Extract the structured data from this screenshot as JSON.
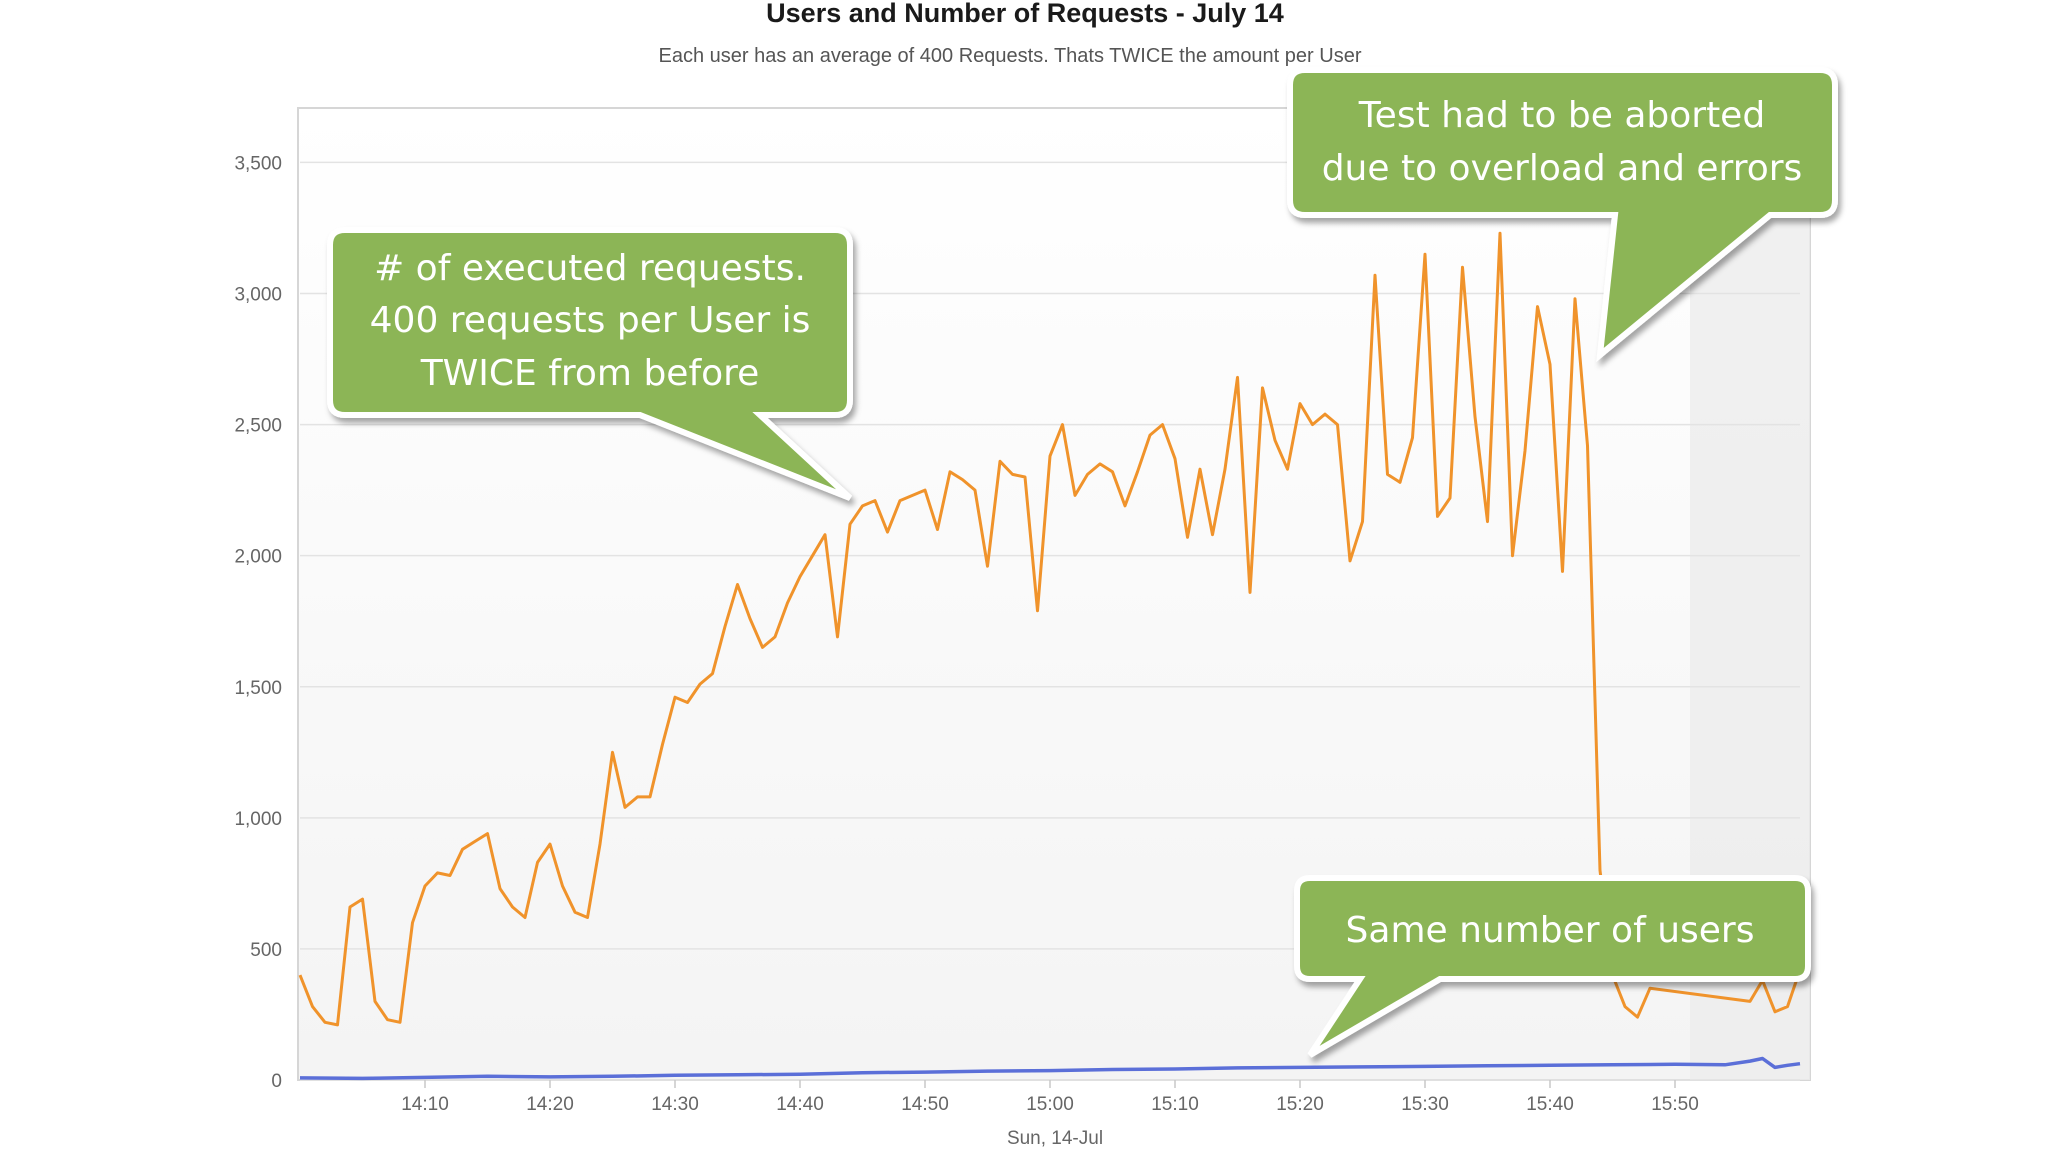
{
  "chart_data": {
    "type": "line",
    "title": "Users and Number of Requests - July 14",
    "subtitle": "Each user has an average of 400 Requests. Thats TWICE the amount per User",
    "xlabel": "Sun, 14-Jul",
    "ylabel": "",
    "x_tick_labels": [
      "14:10",
      "14:20",
      "14:30",
      "14:40",
      "14:50",
      "15:00",
      "15:10",
      "15:20",
      "15:30",
      "15:40",
      "15:50"
    ],
    "x_tick_minutes": [
      10,
      20,
      30,
      40,
      50,
      60,
      70,
      80,
      90,
      100,
      110
    ],
    "x_range_minutes": [
      0,
      120
    ],
    "y_tick_labels": [
      "0",
      "500",
      "1,000",
      "1,500",
      "2,000",
      "2,500",
      "3,000",
      "3,500"
    ],
    "y_tick_values": [
      0,
      500,
      1000,
      1500,
      2000,
      2500,
      3000,
      3500
    ],
    "ylim": [
      0,
      3700
    ],
    "grid": true,
    "series": [
      {
        "name": "",
        "color": "#f0932b",
        "points": [
          [
            0,
            400
          ],
          [
            1,
            280
          ],
          [
            2,
            220
          ],
          [
            3,
            210
          ],
          [
            4,
            660
          ],
          [
            5,
            690
          ],
          [
            6,
            300
          ],
          [
            7,
            230
          ],
          [
            8,
            220
          ],
          [
            9,
            600
          ],
          [
            10,
            740
          ],
          [
            11,
            790
          ],
          [
            12,
            780
          ],
          [
            13,
            880
          ],
          [
            14,
            910
          ],
          [
            15,
            940
          ],
          [
            16,
            730
          ],
          [
            17,
            660
          ],
          [
            18,
            620
          ],
          [
            19,
            830
          ],
          [
            20,
            900
          ],
          [
            21,
            740
          ],
          [
            22,
            640
          ],
          [
            23,
            620
          ],
          [
            24,
            900
          ],
          [
            25,
            1250
          ],
          [
            26,
            1040
          ],
          [
            27,
            1080
          ],
          [
            28,
            1080
          ],
          [
            29,
            1280
          ],
          [
            30,
            1460
          ],
          [
            31,
            1440
          ],
          [
            32,
            1510
          ],
          [
            33,
            1550
          ],
          [
            34,
            1730
          ],
          [
            35,
            1890
          ],
          [
            36,
            1760
          ],
          [
            37,
            1650
          ],
          [
            38,
            1690
          ],
          [
            39,
            1820
          ],
          [
            40,
            1920
          ],
          [
            41,
            2000
          ],
          [
            42,
            2080
          ],
          [
            43,
            1690
          ],
          [
            44,
            2120
          ],
          [
            45,
            2190
          ],
          [
            46,
            2210
          ],
          [
            47,
            2090
          ],
          [
            48,
            2210
          ],
          [
            49,
            2230
          ],
          [
            50,
            2250
          ],
          [
            51,
            2100
          ],
          [
            52,
            2320
          ],
          [
            53,
            2290
          ],
          [
            54,
            2250
          ],
          [
            55,
            1960
          ],
          [
            56,
            2360
          ],
          [
            57,
            2310
          ],
          [
            58,
            2300
          ],
          [
            59,
            1790
          ],
          [
            60,
            2380
          ],
          [
            61,
            2500
          ],
          [
            62,
            2230
          ],
          [
            63,
            2310
          ],
          [
            64,
            2350
          ],
          [
            65,
            2320
          ],
          [
            66,
            2190
          ],
          [
            67,
            2320
          ],
          [
            68,
            2460
          ],
          [
            69,
            2500
          ],
          [
            70,
            2370
          ],
          [
            71,
            2070
          ],
          [
            72,
            2330
          ],
          [
            73,
            2080
          ],
          [
            74,
            2330
          ],
          [
            75,
            2680
          ],
          [
            76,
            1860
          ],
          [
            77,
            2640
          ],
          [
            78,
            2440
          ],
          [
            79,
            2330
          ],
          [
            80,
            2580
          ],
          [
            81,
            2500
          ],
          [
            82,
            2540
          ],
          [
            83,
            2500
          ],
          [
            84,
            1980
          ],
          [
            85,
            2130
          ],
          [
            86,
            3070
          ],
          [
            87,
            2310
          ],
          [
            88,
            2280
          ],
          [
            89,
            2450
          ],
          [
            90,
            3150
          ],
          [
            91,
            2150
          ],
          [
            92,
            2220
          ],
          [
            93,
            3100
          ],
          [
            94,
            2530
          ],
          [
            95,
            2130
          ],
          [
            96,
            3230
          ],
          [
            97,
            2000
          ],
          [
            98,
            2400
          ],
          [
            99,
            2950
          ],
          [
            100,
            2730
          ],
          [
            101,
            1940
          ],
          [
            102,
            2980
          ],
          [
            103,
            2420
          ],
          [
            104,
            800
          ],
          [
            105,
            400
          ],
          [
            106,
            280
          ],
          [
            107,
            240
          ],
          [
            108,
            350
          ],
          [
            116,
            300
          ],
          [
            117,
            380
          ],
          [
            118,
            260
          ],
          [
            119,
            280
          ],
          [
            120,
            420
          ]
        ]
      },
      {
        "name": "",
        "color": "#5b6fd8",
        "points": [
          [
            0,
            8
          ],
          [
            5,
            6
          ],
          [
            10,
            10
          ],
          [
            15,
            14
          ],
          [
            20,
            12
          ],
          [
            25,
            14
          ],
          [
            30,
            18
          ],
          [
            35,
            20
          ],
          [
            40,
            22
          ],
          [
            45,
            28
          ],
          [
            50,
            30
          ],
          [
            55,
            34
          ],
          [
            60,
            36
          ],
          [
            65,
            40
          ],
          [
            70,
            42
          ],
          [
            75,
            46
          ],
          [
            80,
            48
          ],
          [
            85,
            50
          ],
          [
            90,
            52
          ],
          [
            95,
            54
          ],
          [
            100,
            56
          ],
          [
            105,
            58
          ],
          [
            110,
            60
          ],
          [
            114,
            58
          ],
          [
            116,
            72
          ],
          [
            117,
            82
          ],
          [
            118,
            48
          ],
          [
            119,
            56
          ],
          [
            120,
            62
          ]
        ]
      }
    ],
    "annotations": [
      {
        "text_lines": [
          "# of executed requests.",
          "400 requests per User is",
          "TWICE from before"
        ],
        "color": "#8cb556"
      },
      {
        "text_lines": [
          "Test had to be aborted",
          "due to overload and errors"
        ],
        "color": "#8cb556"
      },
      {
        "text_lines": [
          "Same number  of users"
        ],
        "color": "#8cb556"
      }
    ]
  }
}
